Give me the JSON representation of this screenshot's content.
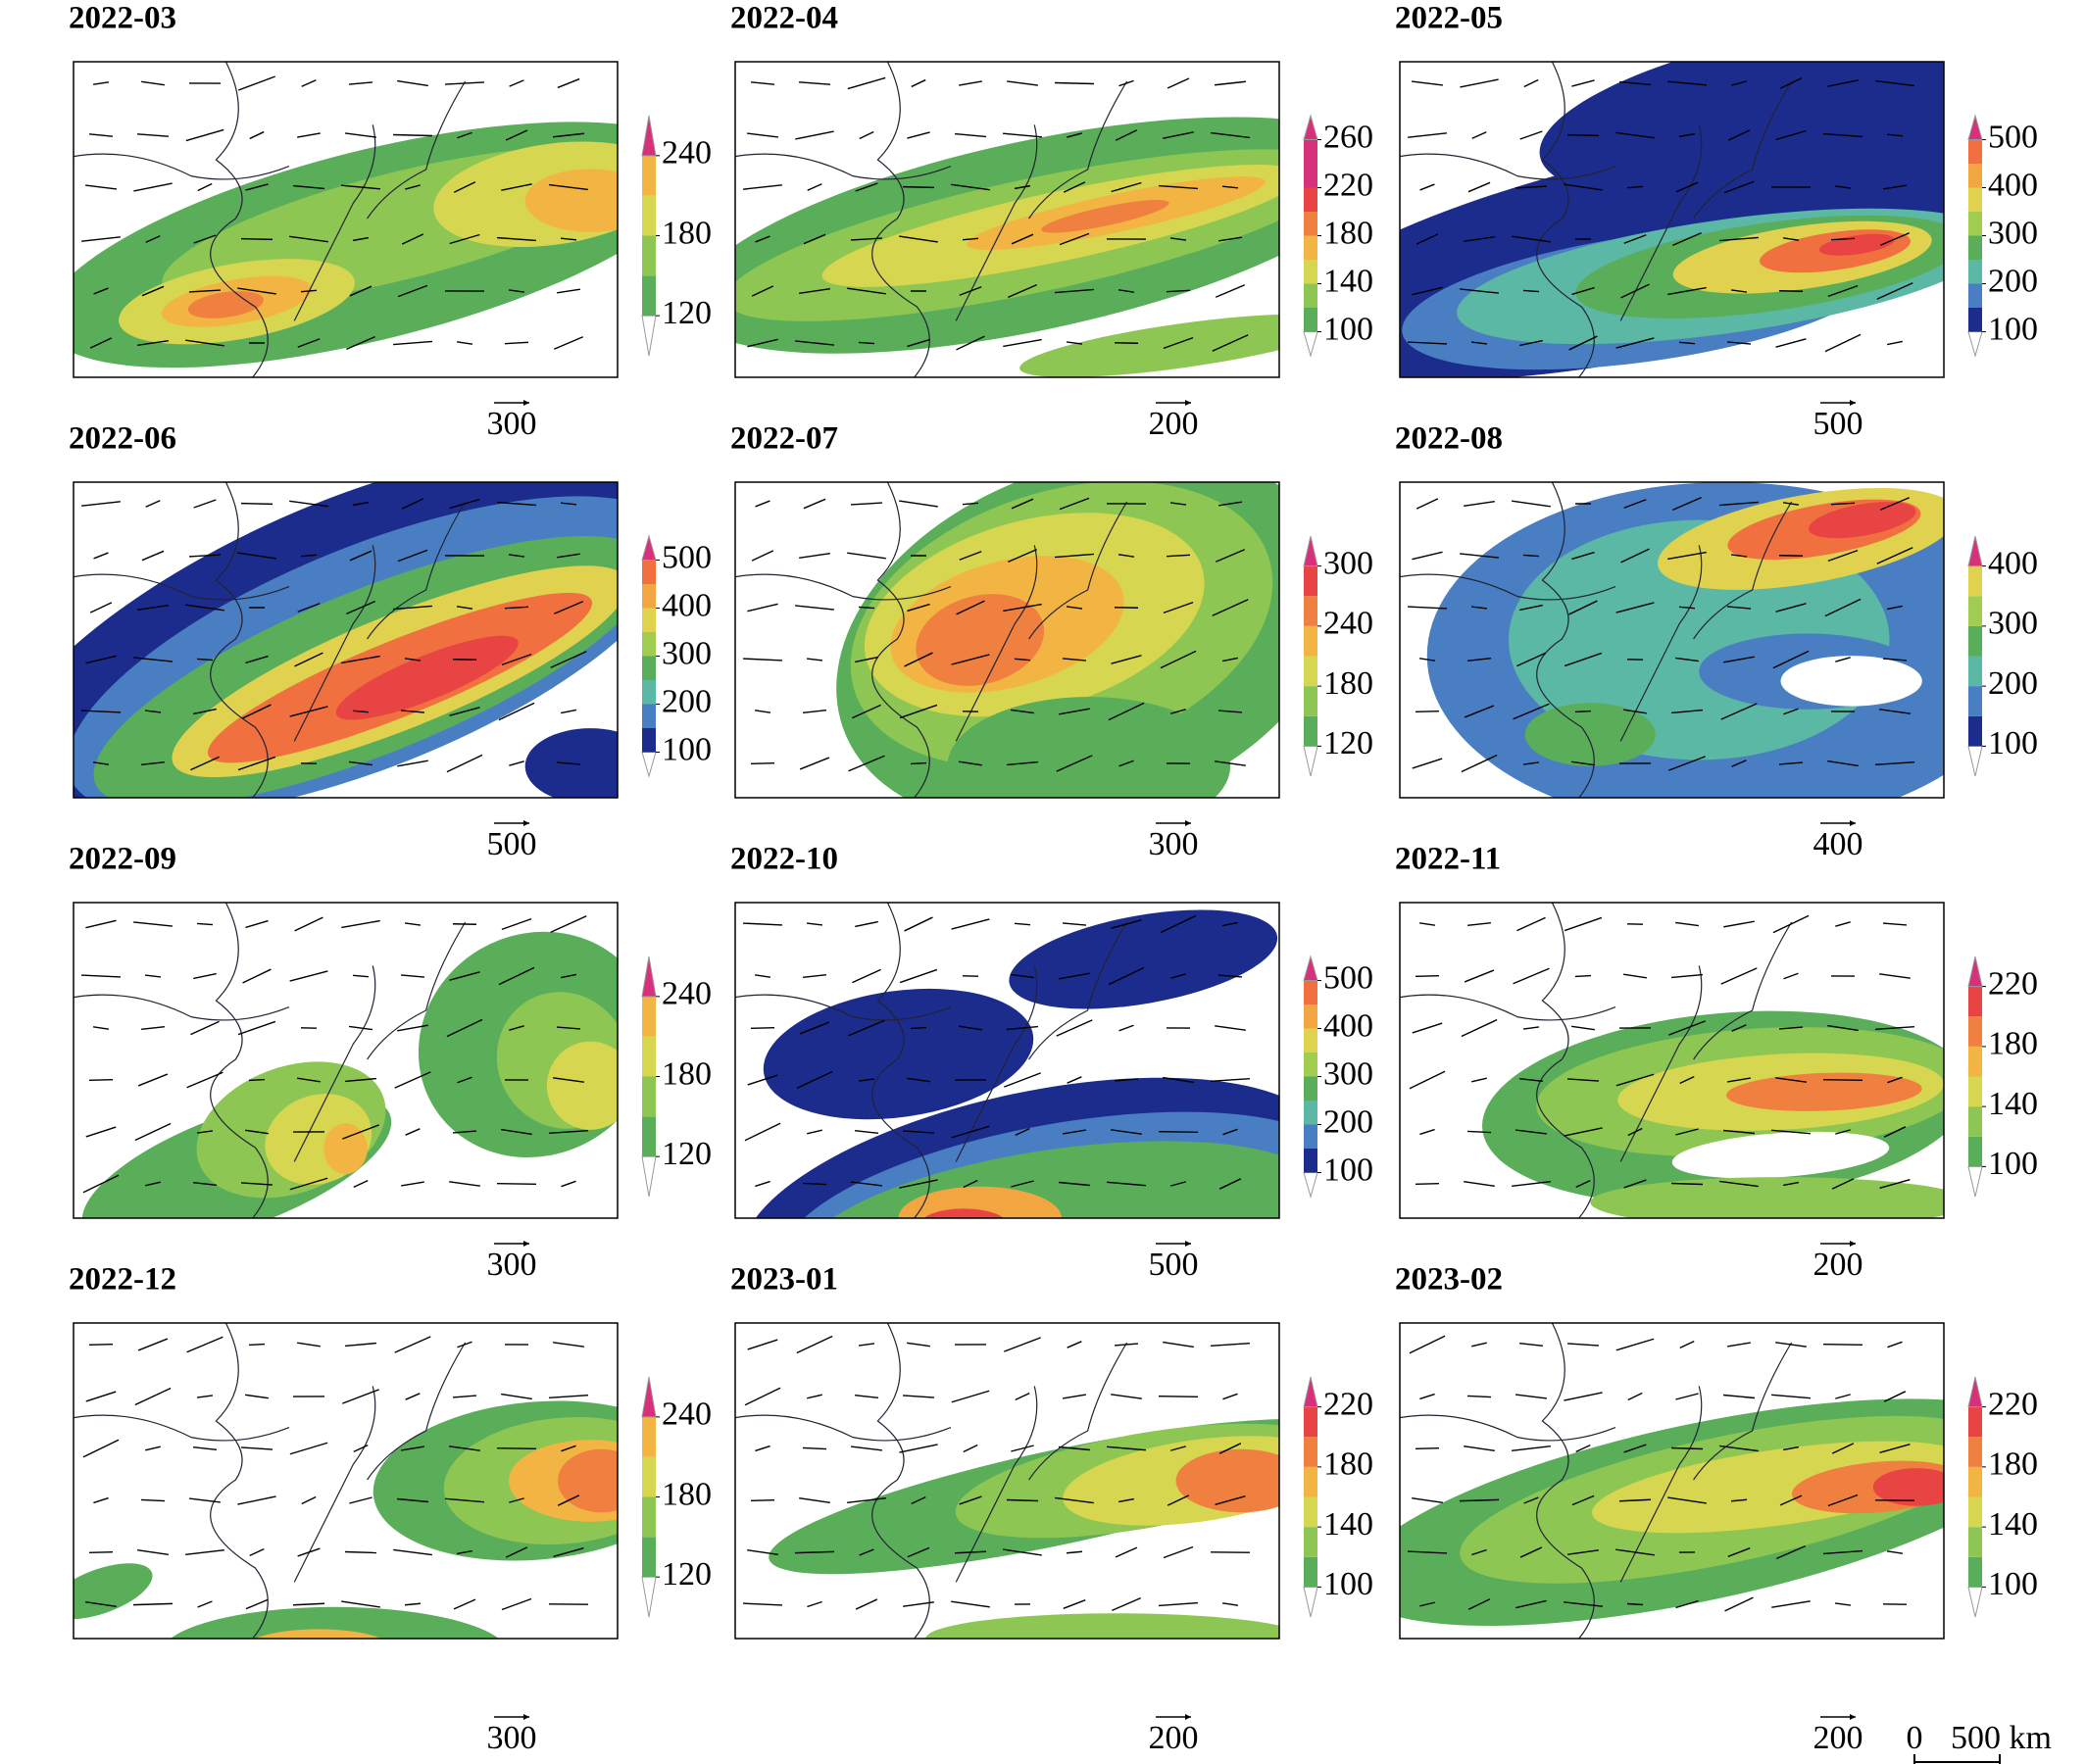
{
  "panels": [
    {
      "title": "2022-03",
      "colorbar_ticks": [
        120,
        180,
        240
      ],
      "reference_vector": "300"
    },
    {
      "title": "2022-04",
      "colorbar_ticks": [
        100,
        140,
        180,
        220,
        260
      ],
      "reference_vector": "200"
    },
    {
      "title": "2022-05",
      "colorbar_ticks": [
        100,
        200,
        300,
        400,
        500
      ],
      "reference_vector": "500"
    },
    {
      "title": "2022-06",
      "colorbar_ticks": [
        100,
        200,
        300,
        400,
        500
      ],
      "reference_vector": "500"
    },
    {
      "title": "2022-07",
      "colorbar_ticks": [
        120,
        180,
        240,
        300
      ],
      "reference_vector": "300"
    },
    {
      "title": "2022-08",
      "colorbar_ticks": [
        100,
        200,
        300,
        400
      ],
      "reference_vector": "400"
    },
    {
      "title": "2022-09",
      "colorbar_ticks": [
        120,
        180,
        240
      ],
      "reference_vector": "300"
    },
    {
      "title": "2022-10",
      "colorbar_ticks": [
        100,
        200,
        300,
        400,
        500
      ],
      "reference_vector": "500"
    },
    {
      "title": "2022-11",
      "colorbar_ticks": [
        100,
        140,
        180,
        220
      ],
      "reference_vector": "200"
    },
    {
      "title": "2022-12",
      "colorbar_ticks": [
        120,
        180,
        240
      ],
      "reference_vector": "300"
    },
    {
      "title": "2023-01",
      "colorbar_ticks": [
        100,
        140,
        180,
        220
      ],
      "reference_vector": "200"
    },
    {
      "title": "2023-02",
      "colorbar_ticks": [
        100,
        140,
        180,
        220
      ],
      "reference_vector": "200"
    }
  ],
  "scale_bar": {
    "start": "0",
    "end": "500 km"
  }
}
